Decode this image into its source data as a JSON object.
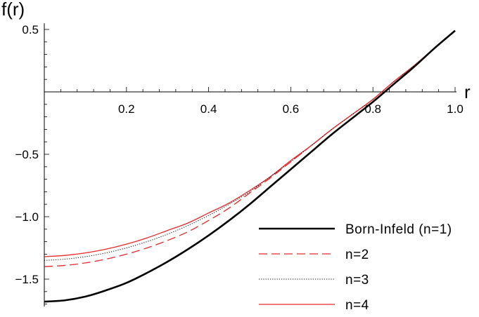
{
  "chart_data": {
    "type": "line",
    "title": "",
    "xlabel": "r",
    "ylabel": "f(r)",
    "xlim": [
      0,
      1.0
    ],
    "ylim": [
      -1.72,
      0.55
    ],
    "x_ticks": [
      {
        "value": 0.2,
        "label": "0.2"
      },
      {
        "value": 0.4,
        "label": "0.4"
      },
      {
        "value": 0.6,
        "label": "0.6"
      },
      {
        "value": 0.8,
        "label": "0.8"
      },
      {
        "value": 1.0,
        "label": "1.0"
      }
    ],
    "y_ticks": [
      {
        "value": 0.5,
        "label": "0.5"
      },
      {
        "value": -0.5,
        "label": "−0.5"
      },
      {
        "value": -1.0,
        "label": "−1.0"
      },
      {
        "value": -1.5,
        "label": "−1.5"
      }
    ],
    "grid": false,
    "legend_position": "bottom-right",
    "x": [
      0.0,
      0.05,
      0.1,
      0.15,
      0.2,
      0.25,
      0.3,
      0.35,
      0.4,
      0.45,
      0.5,
      0.55,
      0.6,
      0.65,
      0.7,
      0.75,
      0.8,
      0.85,
      0.9,
      0.95,
      1.0
    ],
    "series": [
      {
        "name": "Born-Infeld (n=1)",
        "color": "#000000",
        "dash": "solid",
        "width": 2.6,
        "values": [
          -1.68,
          -1.67,
          -1.64,
          -1.59,
          -1.53,
          -1.45,
          -1.36,
          -1.26,
          -1.15,
          -1.03,
          -0.9,
          -0.76,
          -0.62,
          -0.48,
          -0.34,
          -0.21,
          -0.08,
          0.06,
          0.2,
          0.35,
          0.49
        ]
      },
      {
        "name": "n=2",
        "color": "#e8282b",
        "dash": "dashed",
        "width": 1.3,
        "values": [
          -1.4,
          -1.39,
          -1.37,
          -1.34,
          -1.3,
          -1.25,
          -1.19,
          -1.12,
          -1.03,
          -0.93,
          -0.81,
          -0.69,
          -0.56,
          -0.43,
          -0.3,
          -0.18,
          -0.06,
          0.08,
          0.21,
          0.35,
          0.49
        ]
      },
      {
        "name": "n=3",
        "color": "#000000",
        "dash": "dotted",
        "width": 1.0,
        "values": [
          -1.35,
          -1.34,
          -1.32,
          -1.29,
          -1.25,
          -1.2,
          -1.14,
          -1.07,
          -0.99,
          -0.9,
          -0.8,
          -0.68,
          -0.56,
          -0.43,
          -0.3,
          -0.18,
          -0.06,
          0.08,
          0.21,
          0.35,
          0.49
        ]
      },
      {
        "name": "n=4",
        "color": "#e8282b",
        "dash": "solid",
        "width": 1.3,
        "values": [
          -1.32,
          -1.31,
          -1.29,
          -1.26,
          -1.22,
          -1.17,
          -1.11,
          -1.05,
          -0.97,
          -0.89,
          -0.79,
          -0.68,
          -0.55,
          -0.43,
          -0.3,
          -0.18,
          -0.06,
          0.08,
          0.21,
          0.35,
          0.49
        ]
      }
    ]
  }
}
